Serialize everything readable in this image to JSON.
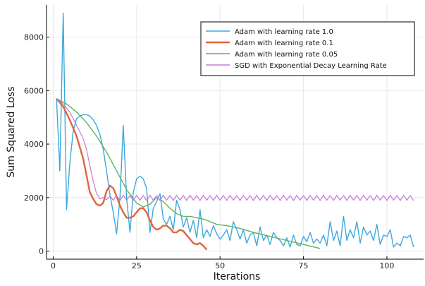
{
  "chart_data": {
    "type": "line",
    "title": "",
    "xlabel": "Iterations",
    "ylabel": "Sum Squared Loss",
    "xlim": [
      -2,
      111
    ],
    "ylim": [
      -300,
      9200
    ],
    "xticks": [
      0,
      25,
      50,
      75,
      100
    ],
    "yticks": [
      0,
      2000,
      4000,
      6000,
      8000
    ],
    "grid": true,
    "legend_position": "top-right",
    "series": [
      {
        "name": "Adam with learning rate 1.0",
        "color": "#3da7dd",
        "x": [
          1,
          2,
          3,
          4,
          5,
          6,
          7,
          8,
          9,
          10,
          11,
          12,
          13,
          14,
          15,
          16,
          17,
          18,
          19,
          20,
          21,
          22,
          23,
          24,
          25,
          26,
          27,
          28,
          29,
          30,
          31,
          32,
          33,
          34,
          35,
          36,
          37,
          38,
          39,
          40,
          41,
          42,
          43,
          44,
          45,
          46,
          47,
          48,
          49,
          50,
          51,
          52,
          53,
          54,
          55,
          56,
          57,
          58,
          59,
          60,
          61,
          62,
          63,
          64,
          65,
          66,
          67,
          68,
          69,
          70,
          71,
          72,
          73,
          74,
          75,
          76,
          77,
          78,
          79,
          80,
          81,
          82,
          83,
          84,
          85,
          86,
          87,
          88,
          89,
          90,
          91,
          92,
          93,
          94,
          95,
          96,
          97,
          98,
          99,
          100,
          101,
          102,
          103,
          104,
          105,
          106,
          107,
          108
        ],
        "values": [
          5700,
          3000,
          8900,
          1550,
          3300,
          4500,
          4950,
          5050,
          5100,
          5100,
          5050,
          4900,
          4700,
          4350,
          3800,
          3000,
          2100,
          1450,
          650,
          2000,
          4700,
          2000,
          700,
          2200,
          2700,
          2800,
          2700,
          2350,
          700,
          1600,
          1850,
          2150,
          1200,
          1000,
          1300,
          800,
          1900,
          1550,
          900,
          1250,
          700,
          1150,
          500,
          1550,
          500,
          800,
          550,
          950,
          650,
          450,
          600,
          800,
          400,
          1100,
          800,
          450,
          800,
          300,
          600,
          700,
          200,
          900,
          400,
          600,
          250,
          700,
          500,
          400,
          200,
          500,
          150,
          600,
          250,
          200,
          550,
          350,
          700,
          300,
          450,
          300,
          600,
          200,
          1100,
          400,
          750,
          200,
          1300,
          400,
          800,
          500,
          1100,
          300,
          900,
          600,
          750,
          400,
          1000,
          250,
          600,
          550,
          800,
          150,
          300,
          200,
          550,
          500,
          600,
          150
        ]
      },
      {
        "name": "Adam with learning rate 0.1",
        "color": "#e0643c",
        "x": [
          1,
          3,
          5,
          7,
          9,
          11,
          12,
          13,
          14,
          15,
          16,
          17,
          18,
          19,
          20,
          21,
          22,
          23,
          24,
          25,
          26,
          27,
          28,
          29,
          30,
          31,
          32,
          33,
          34,
          35,
          36,
          37,
          38,
          39,
          40,
          41,
          42,
          43,
          44,
          45,
          46
        ],
        "values": [
          5700,
          5400,
          4900,
          4300,
          3450,
          2200,
          1950,
          1750,
          1700,
          1800,
          2250,
          2450,
          2350,
          2050,
          1700,
          1450,
          1250,
          1250,
          1300,
          1450,
          1600,
          1600,
          1450,
          1150,
          900,
          800,
          850,
          950,
          950,
          850,
          700,
          700,
          800,
          750,
          600,
          450,
          300,
          250,
          300,
          200,
          50
        ]
      },
      {
        "name": "Adam with learning rate 0.05",
        "color": "#5fb45a",
        "x": [
          1,
          4,
          7,
          10,
          13,
          16,
          19,
          22,
          25,
          27,
          29,
          31,
          33,
          35,
          37,
          39,
          41,
          43,
          45,
          47,
          49,
          52,
          56,
          60,
          65,
          70,
          75,
          80
        ],
        "values": [
          5700,
          5500,
          5200,
          4800,
          4300,
          3700,
          3000,
          2300,
          1800,
          1650,
          1750,
          2000,
          1850,
          1600,
          1400,
          1300,
          1300,
          1250,
          1200,
          1100,
          1000,
          950,
          850,
          700,
          550,
          400,
          250,
          100
        ]
      },
      {
        "name": "SGD with Exponential Decay Learning Rate",
        "color": "#c47ad5",
        "x": [
          1,
          3,
          5,
          7,
          9,
          10,
          11,
          12,
          13,
          14,
          15,
          16,
          17,
          18,
          19,
          20,
          21,
          22,
          23,
          24,
          25,
          26,
          27,
          28,
          29,
          30,
          31,
          32,
          33,
          34,
          35,
          36,
          37,
          38,
          39,
          40,
          41,
          42,
          43,
          44,
          45,
          46,
          47,
          48,
          49,
          50,
          51,
          52,
          53,
          54,
          55,
          56,
          57,
          58,
          59,
          60,
          61,
          62,
          63,
          64,
          65,
          66,
          67,
          68,
          69,
          70,
          71,
          72,
          73,
          74,
          75,
          76,
          77,
          78,
          79,
          80,
          81,
          82,
          83,
          84,
          85,
          86,
          87,
          88,
          89,
          90,
          91,
          92,
          93,
          94,
          95,
          96,
          97,
          98,
          99,
          100,
          101,
          102,
          103,
          104,
          105,
          106,
          107,
          108
        ],
        "values": [
          5700,
          5500,
          5200,
          4700,
          4200,
          3800,
          3200,
          2600,
          2150,
          1950,
          2000,
          1920,
          2060,
          1900,
          2080,
          1890,
          2090,
          1900,
          2080,
          1890,
          2090,
          1900,
          2080,
          1890,
          2090,
          1900,
          2080,
          1890,
          2090,
          1900,
          2080,
          1890,
          2090,
          1900,
          2080,
          1890,
          2090,
          1900,
          2080,
          1890,
          2090,
          1900,
          2080,
          1890,
          2090,
          1900,
          2080,
          1890,
          2090,
          1900,
          2080,
          1890,
          2090,
          1900,
          2080,
          1890,
          2090,
          1900,
          2080,
          1890,
          2090,
          1900,
          2080,
          1890,
          2090,
          1900,
          2080,
          1890,
          2090,
          1900,
          2080,
          1890,
          2090,
          1900,
          2080,
          1890,
          2090,
          1900,
          2080,
          1890,
          2090,
          1900,
          2080,
          1890,
          2090,
          1900,
          2080,
          1890,
          2090,
          1900,
          2080,
          1890,
          2090,
          1900,
          2080,
          1890,
          2090,
          1900,
          2080,
          1890,
          2090,
          1900,
          2080,
          1890
        ]
      }
    ]
  }
}
